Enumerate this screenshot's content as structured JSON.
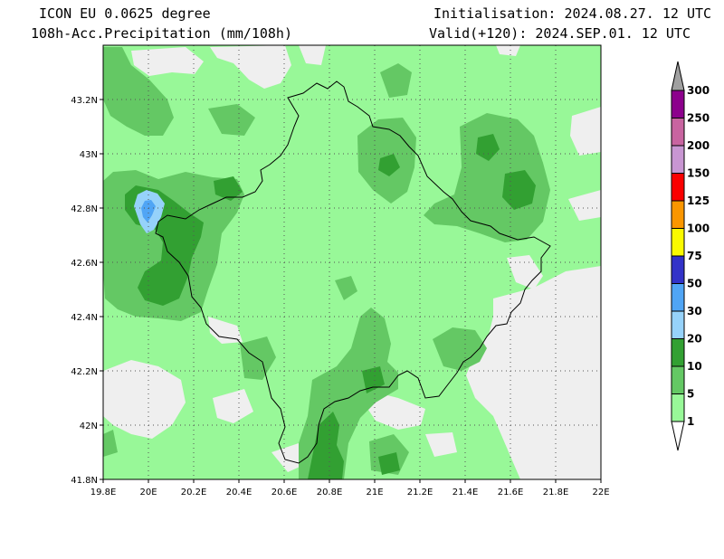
{
  "header": {
    "model": "ICON EU 0.0625 degree",
    "field": "108h-Acc.Precipitation (mm/108h)",
    "init": "Initialisation: 2024.08.27. 12 UTC",
    "valid": "Valid(+120): 2024.SEP.01. 12 UTC"
  },
  "map": {
    "lon_ticks": [
      "19.8E",
      "20E",
      "20.2E",
      "20.4E",
      "20.6E",
      "20.8E",
      "21E",
      "21.2E",
      "21.4E",
      "21.6E",
      "21.8E",
      "22E"
    ],
    "lat_ticks": [
      "41.8N",
      "42N",
      "42.2N",
      "42.4N",
      "42.6N",
      "42.8N",
      "43N",
      "43.2N"
    ],
    "lon_range": [
      19.8,
      22.0
    ],
    "lat_range": [
      41.8,
      43.4
    ],
    "grid": true,
    "colors": {
      "no_precip": "#efefef",
      "1_5": "#98f898",
      "5_10": "#64c864",
      "10_20": "#32a032",
      "20_30": "#96d2fa",
      "30_50": "#50a5f5"
    }
  },
  "legend": {
    "entries": [
      {
        "label": "300",
        "color": "#a0a0a0"
      },
      {
        "label": "250",
        "color": "#8c008c"
      },
      {
        "label": "200",
        "color": "#c864a0"
      },
      {
        "label": "150",
        "color": "#c896d2"
      },
      {
        "label": "125",
        "color": "#fa0000"
      },
      {
        "label": "100",
        "color": "#fa9600"
      },
      {
        "label": "75",
        "color": "#fafa00"
      },
      {
        "label": "50",
        "color": "#3232c8"
      },
      {
        "label": "30",
        "color": "#50a5f5"
      },
      {
        "label": "20",
        "color": "#96d2fa"
      },
      {
        "label": "10",
        "color": "#32a032"
      },
      {
        "label": "5",
        "color": "#64c864"
      },
      {
        "label": "1",
        "color": "#98f898"
      }
    ],
    "bottom_color": "#ffffff"
  }
}
